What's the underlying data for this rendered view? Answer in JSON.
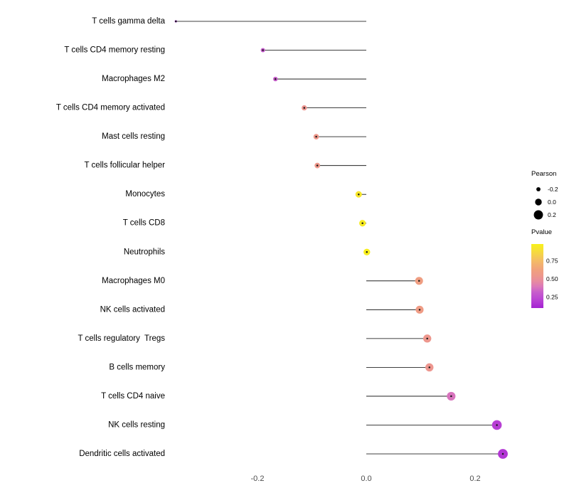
{
  "figure": {
    "background": "#ffffff"
  },
  "chart_data": {
    "type": "lollipop",
    "orientation": "horizontal",
    "title": "",
    "xlabel": "",
    "ylabel": "",
    "grid": false,
    "baseline": 0,
    "xlim": [
      -0.38,
      0.32
    ],
    "x_ticks": [
      -0.2,
      0.0,
      0.2
    ],
    "x_tick_labels": [
      "-0.2",
      "0.0",
      "0.2"
    ],
    "points": [
      {
        "category": "T cells gamma delta",
        "pearson": -0.35,
        "pvalue": 0.08
      },
      {
        "category": "T cells CD4 memory resting",
        "pearson": -0.19,
        "pvalue": 0.3
      },
      {
        "category": "Macrophages M2",
        "pearson": -0.167,
        "pvalue": 0.32
      },
      {
        "category": "T cells CD4 memory activated",
        "pearson": -0.114,
        "pvalue": 0.52
      },
      {
        "category": "Mast cells resting",
        "pearson": -0.092,
        "pvalue": 0.55
      },
      {
        "category": "T cells follicular helper",
        "pearson": -0.09,
        "pvalue": 0.55
      },
      {
        "category": "Monocytes",
        "pearson": -0.014,
        "pvalue": 0.93
      },
      {
        "category": "T cells CD8",
        "pearson": -0.007,
        "pvalue": 0.95
      },
      {
        "category": "Neutrophils",
        "pearson": 0.001,
        "pvalue": 0.97
      },
      {
        "category": "Macrophages M0",
        "pearson": 0.097,
        "pvalue": 0.6
      },
      {
        "category": "NK cells activated",
        "pearson": 0.098,
        "pvalue": 0.58
      },
      {
        "category": "T cells regulatory  Tregs",
        "pearson": 0.112,
        "pvalue": 0.54
      },
      {
        "category": "B cells memory",
        "pearson": 0.116,
        "pvalue": 0.53
      },
      {
        "category": "T cells CD4 naive",
        "pearson": 0.156,
        "pvalue": 0.38
      },
      {
        "category": "NK cells resting",
        "pearson": 0.24,
        "pvalue": 0.2
      },
      {
        "category": "Dendritic cells activated",
        "pearson": 0.251,
        "pvalue": 0.17
      }
    ],
    "size_scale": {
      "variable": "pearson",
      "domain": [
        -0.35,
        0.25
      ],
      "radius_range": [
        1.6,
        6.9
      ]
    },
    "colormap": [
      {
        "value": 0.0,
        "color": "#8b12c4"
      },
      {
        "value": 0.12,
        "color": "#a826d4"
      },
      {
        "value": 0.22,
        "color": "#bb45d4"
      },
      {
        "value": 0.32,
        "color": "#c75ecb"
      },
      {
        "value": 0.4,
        "color": "#dd7ab8"
      },
      {
        "value": 0.5,
        "color": "#ec9394"
      },
      {
        "value": 0.62,
        "color": "#f0a07e"
      },
      {
        "value": 0.75,
        "color": "#f4bc66"
      },
      {
        "value": 0.88,
        "color": "#f6dc3c"
      },
      {
        "value": 1.0,
        "color": "#f8f513"
      }
    ],
    "legend": {
      "size": {
        "title": "Pearson",
        "items": [
          {
            "label": "-0.2",
            "value": -0.2
          },
          {
            "label": "0.0",
            "value": 0.0
          },
          {
            "label": "0.2",
            "value": 0.2
          }
        ],
        "dot_color": "#000000"
      },
      "color": {
        "title": "Pvalue",
        "tick_labels": [
          "0.75",
          "0.50",
          "0.25"
        ],
        "tick_values": [
          0.75,
          0.5,
          0.25
        ],
        "domain_top": 0.98,
        "domain_bottom": 0.1
      }
    },
    "style": {
      "stem_color": "#000000",
      "center_dot_color": "#1a1a1a",
      "category_label_color": "#000000",
      "tick_label_color": "#4d4d4d",
      "legend_text_color": "#000000"
    }
  }
}
